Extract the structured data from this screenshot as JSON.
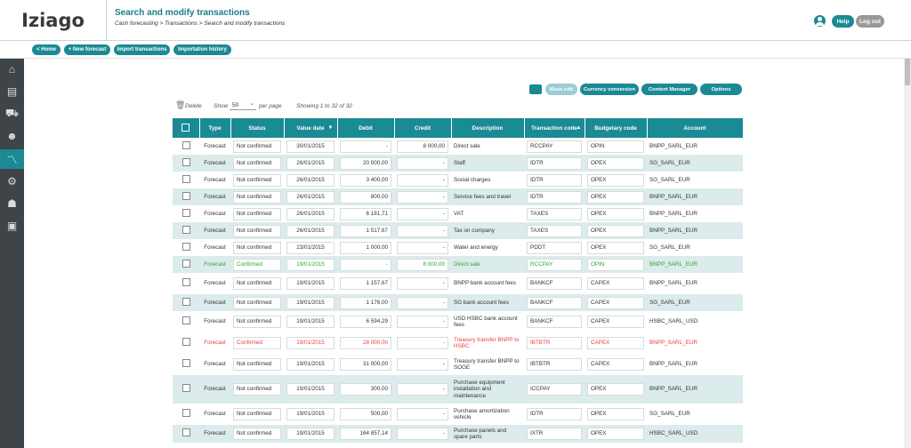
{
  "header": {
    "logo": "Iziago",
    "title": "Search and modify transactions",
    "breadcrumb": "Cash forecasting > Transactions > Search and modify transactions",
    "help_label": "Help",
    "logout_label": "Log out"
  },
  "topbar": {
    "home": "< Home",
    "new_forecast": "+ New forecast",
    "import": "Import transactions",
    "history": "Importation history"
  },
  "toolbar": {
    "mass_edit": "Mass edit",
    "currency": "Currency conversion",
    "content_manager": "Content Manager",
    "options": "Options"
  },
  "controls": {
    "delete": "Delete",
    "show": "Show",
    "show_value": "50",
    "per_page": "per page",
    "showing": "Showing 1 to 32 of 32"
  },
  "columns": [
    "Type",
    "Status",
    "Value date",
    "Debit",
    "Credit",
    "Description",
    "Transaction code",
    "Budgetary code",
    "Account"
  ],
  "rows": [
    {
      "type": "Forecast",
      "status": "Not confirmed",
      "date": "30/01/2015",
      "debit": "-",
      "credit": "8 000,00",
      "desc": "Direct sale",
      "code": "RCCPAY",
      "budget": "OPIN",
      "account": "BNPP_SARL_EUR"
    },
    {
      "type": "Forecast",
      "status": "Not confirmed",
      "date": "26/01/2015",
      "debit": "20 000,00",
      "credit": "-",
      "desc": "Staff",
      "code": "IDTR",
      "budget": "OPEX",
      "account": "SG_SARL_EUR"
    },
    {
      "type": "Forecast",
      "status": "Not confirmed",
      "date": "26/01/2015",
      "debit": "3 400,00",
      "credit": "-",
      "desc": "Social charges",
      "code": "IDTR",
      "budget": "OPEX",
      "account": "SG_SARL_EUR"
    },
    {
      "type": "Forecast",
      "status": "Not confirmed",
      "date": "26/01/2015",
      "debit": "800,00",
      "credit": "-",
      "desc": "Service fees and travel",
      "code": "IDTR",
      "budget": "OPEX",
      "account": "BNPP_SARL_EUR"
    },
    {
      "type": "Forecast",
      "status": "Not confirmed",
      "date": "26/01/2015",
      "debit": "6 181,71",
      "credit": "-",
      "desc": "VAT",
      "code": "TAXES",
      "budget": "OPEX",
      "account": "BNPP_SARL_EUR"
    },
    {
      "type": "Forecast",
      "status": "Not confirmed",
      "date": "26/01/2015",
      "debit": "1 517,67",
      "credit": "-",
      "desc": "Tax on company",
      "code": "TAXES",
      "budget": "OPEX",
      "account": "BNPP_SARL_EUR"
    },
    {
      "type": "Forecast",
      "status": "Not confirmed",
      "date": "23/01/2015",
      "debit": "1 000,00",
      "credit": "-",
      "desc": "Water and energy",
      "code": "PDDT",
      "budget": "OPEX",
      "account": "SG_SARL_EUR"
    },
    {
      "type": "Forecast",
      "status": "Confirmed",
      "date": "19/01/2015",
      "debit": "-",
      "credit": "8 000,00",
      "desc": "Direct sale",
      "code": "RCCPAY",
      "budget": "OPIN",
      "account": "BNPP_SARL_EUR",
      "color": "green"
    },
    {
      "type": "Forecast",
      "status": "Not confirmed",
      "date": "19/01/2015",
      "debit": "1 157,67",
      "credit": "-",
      "desc": "BNPP bank account fees",
      "code": "BANKCF",
      "budget": "CAPEX",
      "account": "BNPP_SARL_EUR"
    },
    {
      "type": "Forecast",
      "status": "Not confirmed",
      "date": "19/01/2015",
      "debit": "1 176,00",
      "credit": "-",
      "desc": "SG bank account fees",
      "code": "BANKCF",
      "budget": "CAPEX",
      "account": "SG_SARL_EUR"
    },
    {
      "type": "Forecast",
      "status": "Not confirmed",
      "date": "19/01/2015",
      "debit": "6 594,29",
      "credit": "-",
      "desc": "USD HSBC bank account fees",
      "code": "BANKCF",
      "budget": "CAPEX",
      "account": "HSBC_SARL_USD"
    },
    {
      "type": "Forecast",
      "status": "Confirmed",
      "date": "19/01/2015",
      "debit": "28 000,00",
      "credit": "-",
      "desc": "Treasury transfer BNPP to HSBC",
      "code": "IBTBTR",
      "budget": "CAPEX",
      "account": "BNPP_SARL_EUR",
      "color": "red"
    },
    {
      "type": "Forecast",
      "status": "Not confirmed",
      "date": "19/01/2015",
      "debit": "31 000,00",
      "credit": "-",
      "desc": "Treasury transfer BNPP to SOGE",
      "code": "IBTBTR",
      "budget": "CAPEX",
      "account": "BNPP_SARL_EUR"
    },
    {
      "type": "Forecast",
      "status": "Not confirmed",
      "date": "19/01/2015",
      "debit": "300,00",
      "credit": "-",
      "desc": "Purchase equipment installation and maintenance",
      "code": "ICCPAY",
      "budget": "OPEX",
      "account": "BNPP_SARL_EUR"
    },
    {
      "type": "Forecast",
      "status": "Not confirmed",
      "date": "19/01/2015",
      "debit": "500,00",
      "credit": "-",
      "desc": "Purchase amortization vehicle",
      "code": "IDTR",
      "budget": "OPEX",
      "account": "SG_SARL_EUR"
    },
    {
      "type": "Forecast",
      "status": "Not confirmed",
      "date": "19/01/2015",
      "debit": "164 857,14",
      "credit": "-",
      "desc": "Purchase panels and spare parts",
      "code": "IXTR",
      "budget": "OPEX",
      "account": "HSBC_SARL_USD"
    }
  ]
}
